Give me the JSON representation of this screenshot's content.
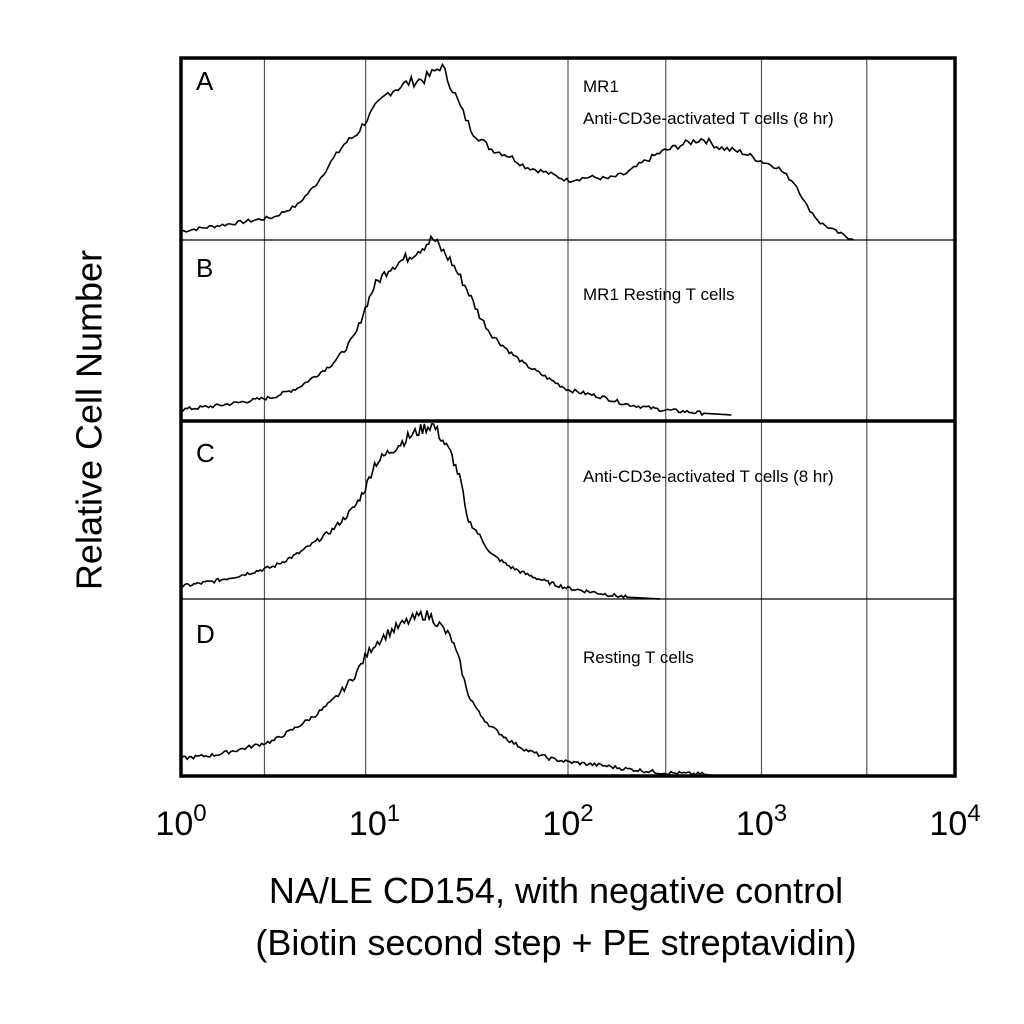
{
  "chart_data": {
    "type": "area",
    "ylabel": "Relative Cell Number",
    "xlabel_line1": "NA/LE CD154, with negative control",
    "xlabel_line2": "(Biotin second step + PE streptavidin)",
    "xscale": "log",
    "xlim": [
      1,
      10000
    ],
    "xticks": [
      {
        "base": "10",
        "exp": "0"
      },
      {
        "base": "10",
        "exp": "1"
      },
      {
        "base": "10",
        "exp": "2"
      },
      {
        "base": "10",
        "exp": "3"
      },
      {
        "base": "10",
        "exp": "4"
      }
    ],
    "gridlines_x": [
      2.7,
      9,
      100,
      320,
      1000,
      3500
    ],
    "grid": true,
    "panels": [
      {
        "letter": "A",
        "lines": [
          "MR1",
          "Anti-CD3e-activated T cells (8 hr)"
        ],
        "points": [
          [
            1,
            0.05
          ],
          [
            1.5,
            0.08
          ],
          [
            2,
            0.1
          ],
          [
            3,
            0.13
          ],
          [
            4,
            0.2
          ],
          [
            5,
            0.32
          ],
          [
            6,
            0.45
          ],
          [
            7,
            0.55
          ],
          [
            8,
            0.6
          ],
          [
            9,
            0.68
          ],
          [
            10,
            0.75
          ],
          [
            12,
            0.85
          ],
          [
            15,
            0.9
          ],
          [
            18,
            0.92
          ],
          [
            20,
            0.95
          ],
          [
            22,
            1.0
          ],
          [
            25,
            0.88
          ],
          [
            28,
            0.75
          ],
          [
            32,
            0.62
          ],
          [
            40,
            0.52
          ],
          [
            50,
            0.48
          ],
          [
            60,
            0.42
          ],
          [
            80,
            0.38
          ],
          [
            100,
            0.34
          ],
          [
            130,
            0.36
          ],
          [
            160,
            0.35
          ],
          [
            200,
            0.38
          ],
          [
            250,
            0.45
          ],
          [
            300,
            0.5
          ],
          [
            400,
            0.55
          ],
          [
            500,
            0.58
          ],
          [
            600,
            0.53
          ],
          [
            800,
            0.5
          ],
          [
            1000,
            0.45
          ],
          [
            1200,
            0.42
          ],
          [
            1500,
            0.32
          ],
          [
            1700,
            0.2
          ],
          [
            2000,
            0.1
          ],
          [
            2500,
            0.04
          ],
          [
            3000,
            0.0
          ]
        ]
      },
      {
        "letter": "B",
        "lines": [
          "MR1 Resting T cells"
        ],
        "points": [
          [
            1,
            0.03
          ],
          [
            1.5,
            0.05
          ],
          [
            2,
            0.07
          ],
          [
            3,
            0.1
          ],
          [
            4,
            0.15
          ],
          [
            5,
            0.22
          ],
          [
            6,
            0.28
          ],
          [
            7,
            0.36
          ],
          [
            8,
            0.45
          ],
          [
            9,
            0.6
          ],
          [
            10,
            0.72
          ],
          [
            12,
            0.82
          ],
          [
            15,
            0.88
          ],
          [
            18,
            0.94
          ],
          [
            20,
            0.98
          ],
          [
            25,
            0.85
          ],
          [
            30,
            0.7
          ],
          [
            35,
            0.55
          ],
          [
            40,
            0.45
          ],
          [
            50,
            0.35
          ],
          [
            60,
            0.28
          ],
          [
            80,
            0.2
          ],
          [
            100,
            0.14
          ],
          [
            150,
            0.1
          ],
          [
            200,
            0.06
          ],
          [
            300,
            0.03
          ],
          [
            500,
            0.01
          ],
          [
            700,
            0.0
          ]
        ]
      },
      {
        "letter": "C",
        "lines": [
          "Anti-CD3e-activated T cells (8 hr)"
        ],
        "points": [
          [
            1,
            0.07
          ],
          [
            1.5,
            0.1
          ],
          [
            2,
            0.13
          ],
          [
            3,
            0.18
          ],
          [
            4,
            0.25
          ],
          [
            5,
            0.32
          ],
          [
            6,
            0.38
          ],
          [
            7,
            0.45
          ],
          [
            8,
            0.52
          ],
          [
            9,
            0.62
          ],
          [
            10,
            0.75
          ],
          [
            12,
            0.82
          ],
          [
            15,
            0.9
          ],
          [
            18,
            0.95
          ],
          [
            20,
            0.97
          ],
          [
            22,
            0.9
          ],
          [
            25,
            0.8
          ],
          [
            28,
            0.65
          ],
          [
            30,
            0.45
          ],
          [
            35,
            0.35
          ],
          [
            40,
            0.25
          ],
          [
            50,
            0.18
          ],
          [
            60,
            0.14
          ],
          [
            80,
            0.09
          ],
          [
            100,
            0.06
          ],
          [
            150,
            0.03
          ],
          [
            200,
            0.01
          ],
          [
            300,
            0.0
          ]
        ]
      },
      {
        "letter": "D",
        "lines": [
          "Resting T cells"
        ],
        "points": [
          [
            1,
            0.1
          ],
          [
            1.5,
            0.12
          ],
          [
            2,
            0.15
          ],
          [
            3,
            0.2
          ],
          [
            4,
            0.28
          ],
          [
            5,
            0.35
          ],
          [
            6,
            0.42
          ],
          [
            7,
            0.5
          ],
          [
            8,
            0.58
          ],
          [
            9,
            0.68
          ],
          [
            10,
            0.75
          ],
          [
            12,
            0.82
          ],
          [
            15,
            0.88
          ],
          [
            18,
            0.92
          ],
          [
            20,
            0.9
          ],
          [
            22,
            0.85
          ],
          [
            25,
            0.78
          ],
          [
            28,
            0.62
          ],
          [
            30,
            0.48
          ],
          [
            35,
            0.35
          ],
          [
            40,
            0.28
          ],
          [
            50,
            0.2
          ],
          [
            60,
            0.15
          ],
          [
            80,
            0.1
          ],
          [
            100,
            0.08
          ],
          [
            150,
            0.06
          ],
          [
            200,
            0.04
          ],
          [
            300,
            0.02
          ],
          [
            500,
            0.01
          ],
          [
            600,
            0.0
          ]
        ]
      }
    ]
  }
}
